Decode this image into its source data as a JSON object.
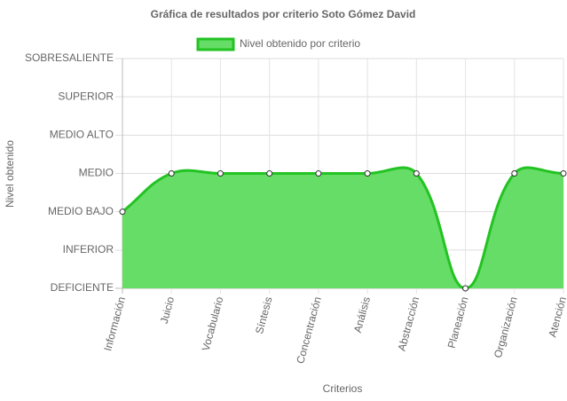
{
  "chart_data": {
    "type": "line",
    "title": "Gráfica de resultados por criterio Soto Gómez David",
    "x_label": "Criterios",
    "y_label": "Nivel obtenido",
    "categories": [
      "Información",
      "Juicio",
      "Vocabulario",
      "Síntesis",
      "Concentración",
      "Análisis",
      "Abstracción",
      "Planeación",
      "Organización",
      "Atención"
    ],
    "series": [
      {
        "name": "Nivel obtenido por criterio",
        "color": "#22c322",
        "fill_color": "#66dd66",
        "values": [
          2,
          3,
          3,
          3,
          3,
          3,
          3,
          0,
          3,
          3
        ]
      }
    ],
    "ylim": [
      0,
      6
    ],
    "yticks": [
      {
        "value": 0,
        "label": "DEFICIENTE"
      },
      {
        "value": 1,
        "label": "INFERIOR"
      },
      {
        "value": 2,
        "label": "MEDIO BAJO"
      },
      {
        "value": 3,
        "label": "MEDIO"
      },
      {
        "value": 4,
        "label": "MEDIO ALTO"
      },
      {
        "value": 5,
        "label": "SUPERIOR"
      },
      {
        "value": 6,
        "label": "SOBRESALIENTE"
      }
    ],
    "grid": true,
    "legend": "top"
  }
}
